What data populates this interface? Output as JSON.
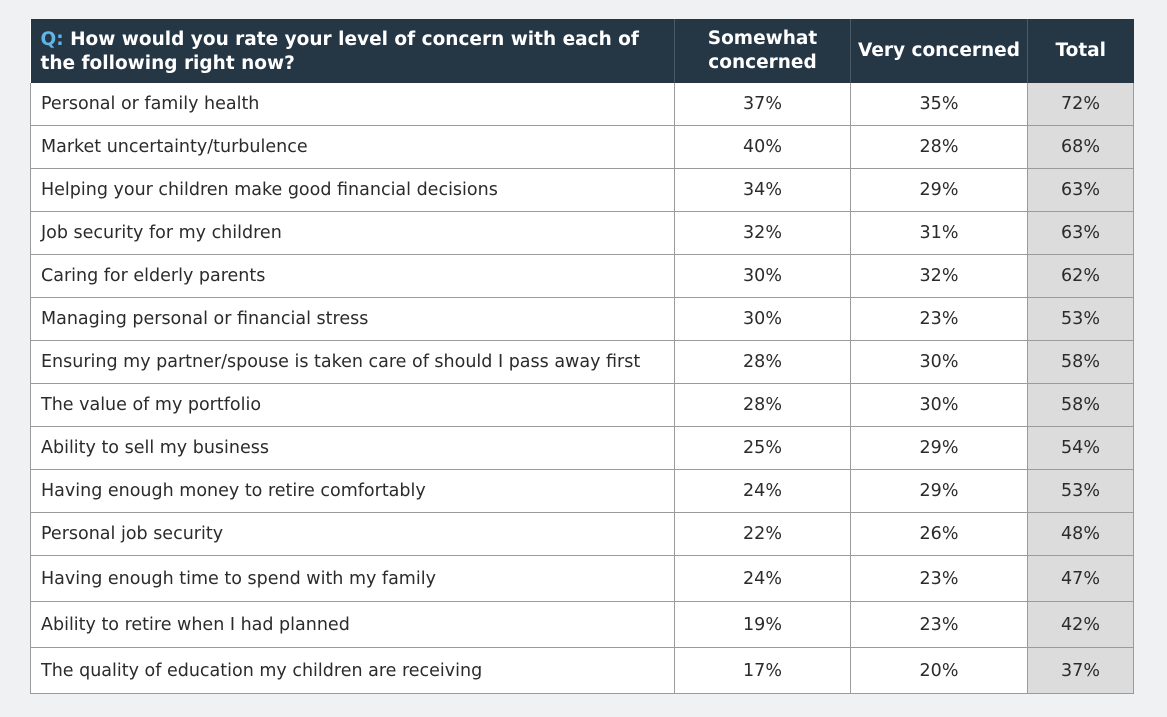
{
  "header": {
    "question_prefix": "Q:",
    "question": "How would you rate your level of concern with each of the following right now?",
    "col_somewhat_line1": "Somewhat",
    "col_somewhat_line2": "concerned",
    "col_very": "Very concerned",
    "col_total": "Total"
  },
  "rows": [
    {
      "item": "Personal or family health",
      "somewhat": "37%",
      "very": "35%",
      "total": "72%"
    },
    {
      "item": "Market uncertainty/turbulence",
      "somewhat": "40%",
      "very": "28%",
      "total": "68%"
    },
    {
      "item": "Helping your children make good financial decisions",
      "somewhat": "34%",
      "very": "29%",
      "total": "63%"
    },
    {
      "item": "Job security for my children",
      "somewhat": "32%",
      "very": "31%",
      "total": "63%"
    },
    {
      "item": "Caring for elderly parents",
      "somewhat": "30%",
      "very": "32%",
      "total": "62%"
    },
    {
      "item": "Managing personal or financial stress",
      "somewhat": "30%",
      "very": "23%",
      "total": "53%"
    },
    {
      "item": "Ensuring my partner/spouse is taken care of should I pass away first",
      "somewhat": "28%",
      "very": "30%",
      "total": "58%"
    },
    {
      "item": "The value of my portfolio",
      "somewhat": "28%",
      "very": "30%",
      "total": "58%"
    },
    {
      "item": "Ability to sell my business",
      "somewhat": "25%",
      "very": "29%",
      "total": "54%"
    },
    {
      "item": "Having enough money to retire comfortably",
      "somewhat": "24%",
      "very": "29%",
      "total": "53%"
    },
    {
      "item": "Personal job security",
      "somewhat": "22%",
      "very": "26%",
      "total": "48%"
    },
    {
      "item": "Having enough time to spend with my family",
      "somewhat": "24%",
      "very": "23%",
      "total": "47%"
    },
    {
      "item": "Ability to retire when I had planned",
      "somewhat": "19%",
      "very": "23%",
      "total": "42%"
    },
    {
      "item": "The quality of education my children are receiving",
      "somewhat": "17%",
      "very": "20%",
      "total": "37%"
    }
  ]
}
